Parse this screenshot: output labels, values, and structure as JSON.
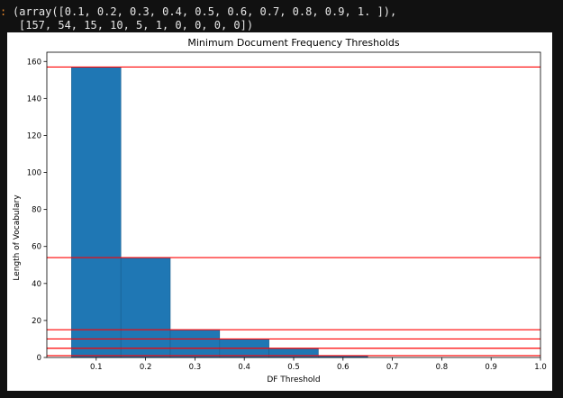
{
  "output": {
    "prompt_glyph": ":",
    "line1": "(array([0.1, 0.2, 0.3, 0.4, 0.5, 0.6, 0.7, 0.8, 0.9, 1. ]),",
    "line2": "[157, 54, 15, 10, 5, 1, 0, 0, 0, 0])"
  },
  "chart_data": {
    "type": "bar",
    "title": "Minimum Document Frequency Thresholds",
    "xlabel": "DF Threshold",
    "ylabel": "Length of Vocabulary",
    "x": [
      0.1,
      0.2,
      0.3,
      0.4,
      0.5,
      0.6,
      0.7,
      0.8,
      0.9,
      1.0
    ],
    "values": [
      157,
      54,
      15,
      10,
      5,
      1,
      0,
      0,
      0,
      0
    ],
    "bar_width": 0.1,
    "xlim": [
      0,
      1.0
    ],
    "ylim": [
      0,
      165
    ],
    "xticks": [
      "0.1",
      "0.2",
      "0.3",
      "0.4",
      "0.5",
      "0.6",
      "0.7",
      "0.8",
      "0.9",
      "1.0"
    ],
    "yticks": [
      "0",
      "20",
      "40",
      "60",
      "80",
      "100",
      "120",
      "140",
      "160"
    ],
    "hlines": [
      157,
      54,
      15,
      10,
      5,
      1
    ],
    "bar_color": "#1f77b4",
    "hline_color": "#ff0000",
    "grid": false
  }
}
